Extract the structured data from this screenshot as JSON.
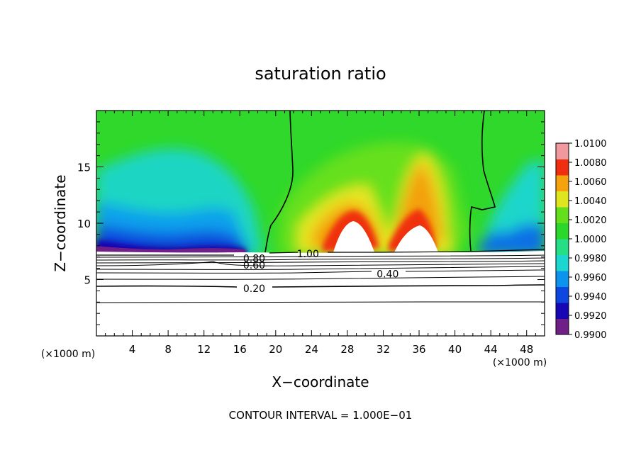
{
  "chart_data": {
    "type": "heatmap",
    "title": "saturation ratio",
    "xlabel": "X−coordinate",
    "ylabel": "Z−coordinate",
    "x_unit_label": "(×1000 m)",
    "z_unit_label": "(×1000 m)",
    "xlim": [
      0,
      50
    ],
    "ylim": [
      0,
      20
    ],
    "x_ticks": [
      4,
      8,
      12,
      16,
      20,
      24,
      28,
      32,
      36,
      40,
      44,
      48
    ],
    "y_ticks": [
      5,
      10,
      15
    ],
    "colorbar": {
      "min": 0.99,
      "max": 1.01,
      "tick_labels": [
        "1.0100",
        "1.0080",
        "1.0060",
        "1.0040",
        "1.0020",
        "1.0000",
        "0.9980",
        "0.9960",
        "0.9940",
        "0.9920",
        "0.9900"
      ],
      "colors": [
        "#6f1f86",
        "#1606b4",
        "#0d47e0",
        "#0b93ee",
        "#1cd7d0",
        "#25df86",
        "#2bd72b",
        "#63df1b",
        "#dfe61f",
        "#f5a30d",
        "#f02f10",
        "#f09aa0"
      ]
    },
    "contour_labels": [
      {
        "text": "1.00",
        "x": 23.6,
        "z": 7.3
      },
      {
        "text": "0.80",
        "x": 17.6,
        "z": 6.9
      },
      {
        "text": "0.60",
        "x": 17.6,
        "z": 6.3
      },
      {
        "text": "0.40",
        "x": 32.5,
        "z": 5.5
      },
      {
        "text": "0.20",
        "x": 17.6,
        "z": 4.2
      }
    ],
    "footer": "CONTOUR INTERVAL = 1.000E−01"
  }
}
